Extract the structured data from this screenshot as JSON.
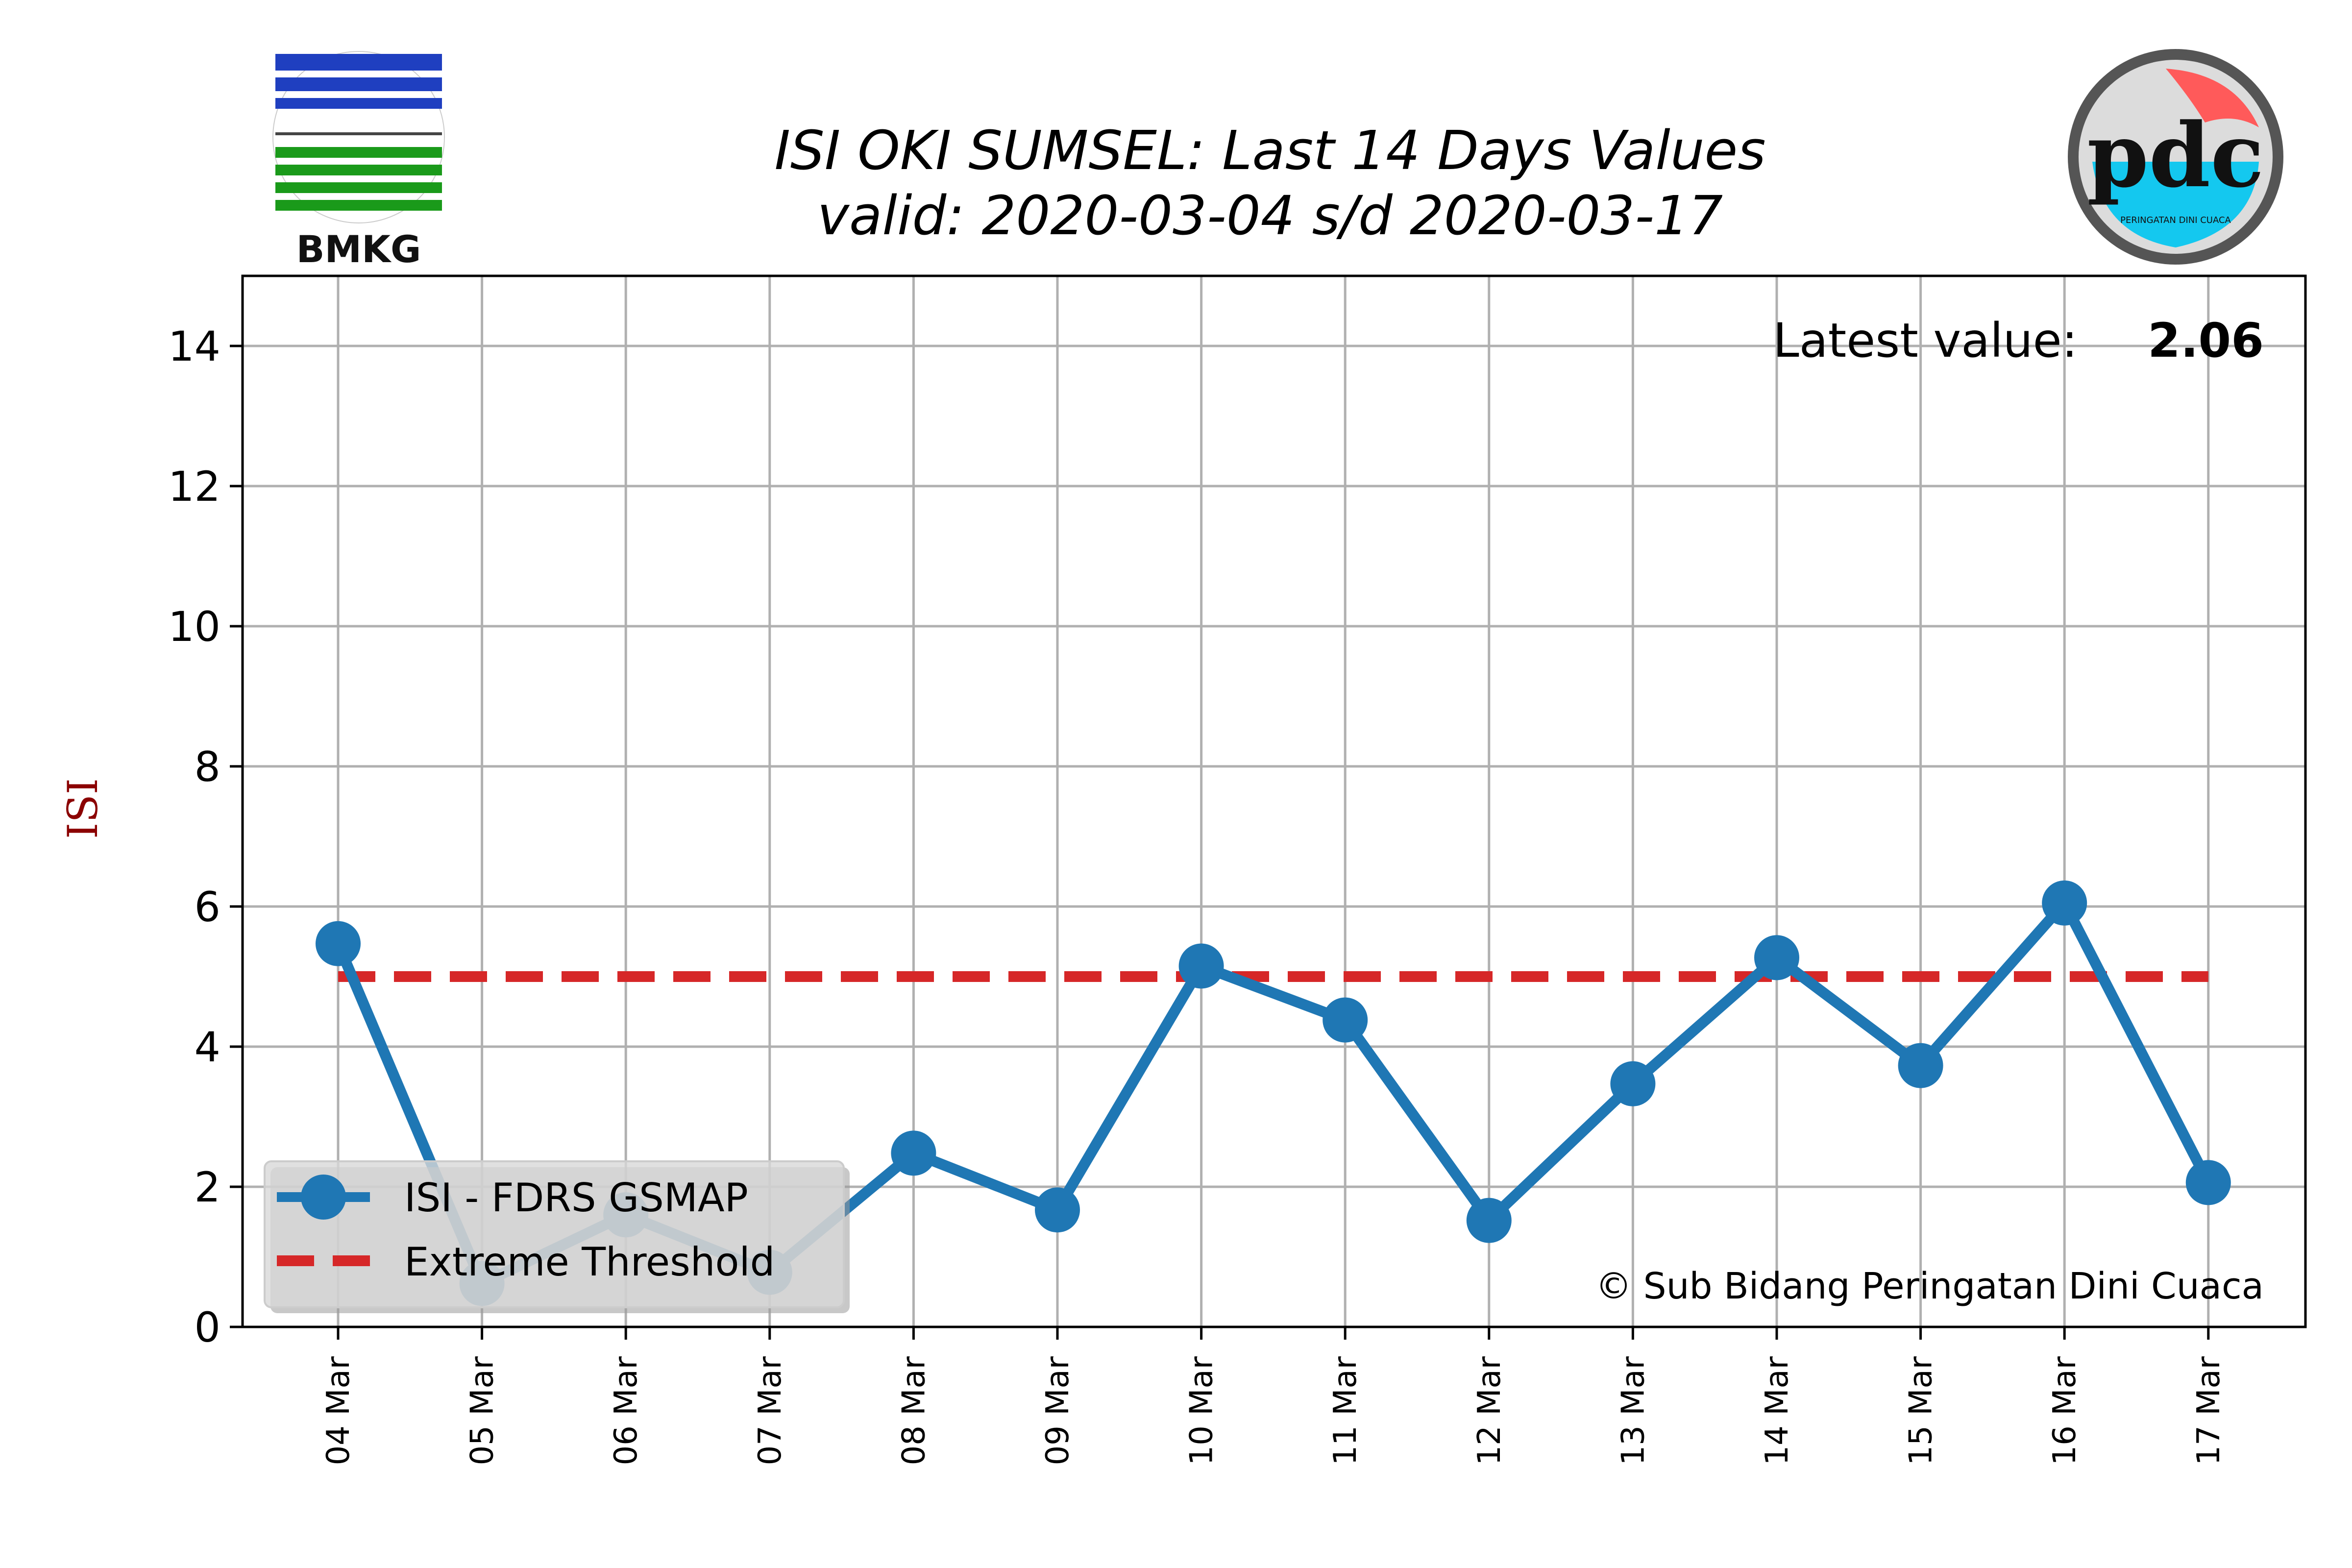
{
  "colors": {
    "series": "#1f77b4",
    "threshold": "#d62728",
    "ylabel": "#8b0000",
    "grid": "#b0b0b0",
    "logo_blue": "#1f3fc0",
    "logo_green": "#1a9a1a",
    "pdc_red": "#ff5a5a",
    "pdc_cyan": "#14c8ef"
  },
  "logos": {
    "left_text": "BMKG",
    "left_icon": "bmkg-logo",
    "right_icon": "pdc-logo",
    "right_text": "pdc",
    "right_subtext": "PERINGATAN DINI CUACA"
  },
  "annotations": {
    "latest_label": "Latest value:",
    "latest_value": "2.06",
    "copyright": "© Sub Bidang Peringatan Dini Cuaca"
  },
  "chart_data": {
    "type": "line",
    "title": "ISI OKI SUMSEL: Last 14 Days Values",
    "subtitle": "valid: 2020-03-04 s/d 2020-03-17",
    "xlabel": "",
    "ylabel": "ISI",
    "categories": [
      "04 Mar",
      "05 Mar",
      "06 Mar",
      "07 Mar",
      "08 Mar",
      "09 Mar",
      "10 Mar",
      "11 Mar",
      "12 Mar",
      "13 Mar",
      "14 Mar",
      "15 Mar",
      "16 Mar",
      "17 Mar"
    ],
    "series": [
      {
        "name": "ISI - FDRS GSMAP",
        "values": [
          5.47,
          0.62,
          1.6,
          0.78,
          2.48,
          1.67,
          5.15,
          4.38,
          1.52,
          3.47,
          5.27,
          3.73,
          6.05,
          2.06
        ]
      },
      {
        "name": "Extreme Threshold",
        "values": [
          5,
          5,
          5,
          5,
          5,
          5,
          5,
          5,
          5,
          5,
          5,
          5,
          5,
          5
        ]
      }
    ],
    "ylim": [
      0,
      15
    ],
    "yticks": [
      0,
      2,
      4,
      6,
      8,
      10,
      12,
      14
    ],
    "grid": true,
    "legend_position": "lower-left"
  }
}
